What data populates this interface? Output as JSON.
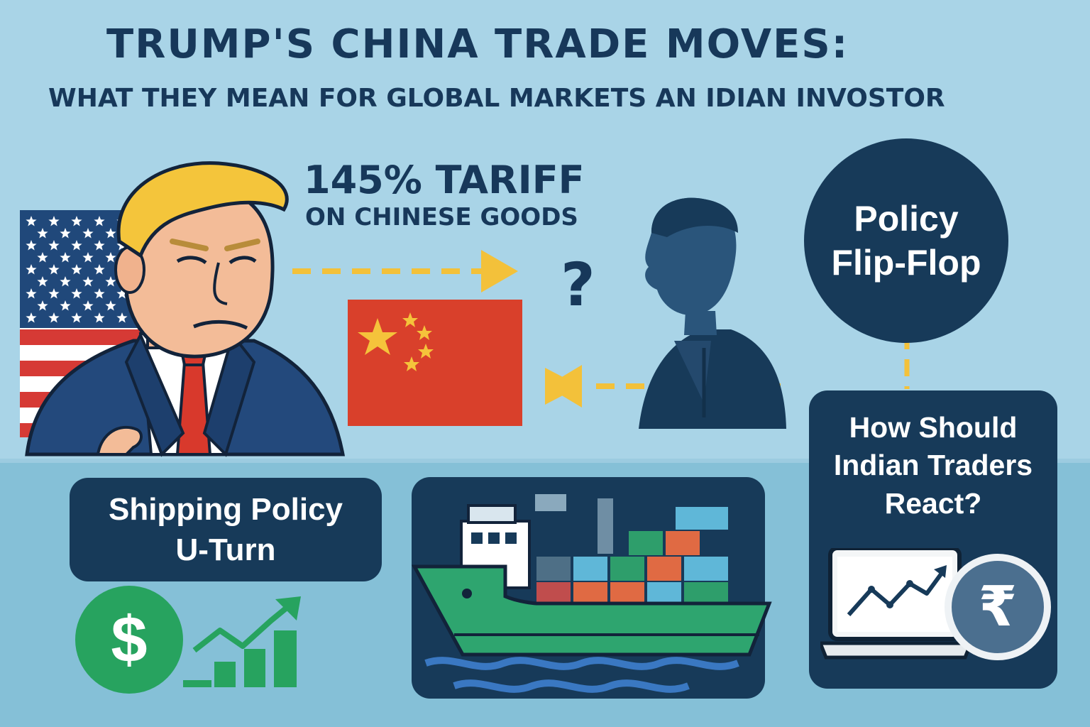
{
  "title": "TRUMP'S CHINA TRADE MOVES:",
  "subtitle": "WHAT THEY MEAN FOR GLOBAL MARKETS AN IDIAN INVOSTOR",
  "tariff": {
    "headline": "145% TARIFF",
    "detail": "ON CHINESE GOODS"
  },
  "question_mark": "?",
  "policy_circle": {
    "line1": "Policy",
    "line2": "Flip-Flop"
  },
  "shipping_box": {
    "line1": "Shipping Policy",
    "line2": "U-Turn"
  },
  "traders_box": {
    "line1": "How Should",
    "line2": "Indian Traders",
    "line3": "React?"
  },
  "currency": {
    "dollar": "$",
    "rupee": "₹"
  },
  "colors": {
    "sky": "#a9d4e7",
    "water": "#84bfd6",
    "navy": "#173a59",
    "accent_yellow": "#f3c13a",
    "china_red": "#d9402b",
    "ship_green": "#2ea56f",
    "dollar_green": "#27a35f"
  }
}
